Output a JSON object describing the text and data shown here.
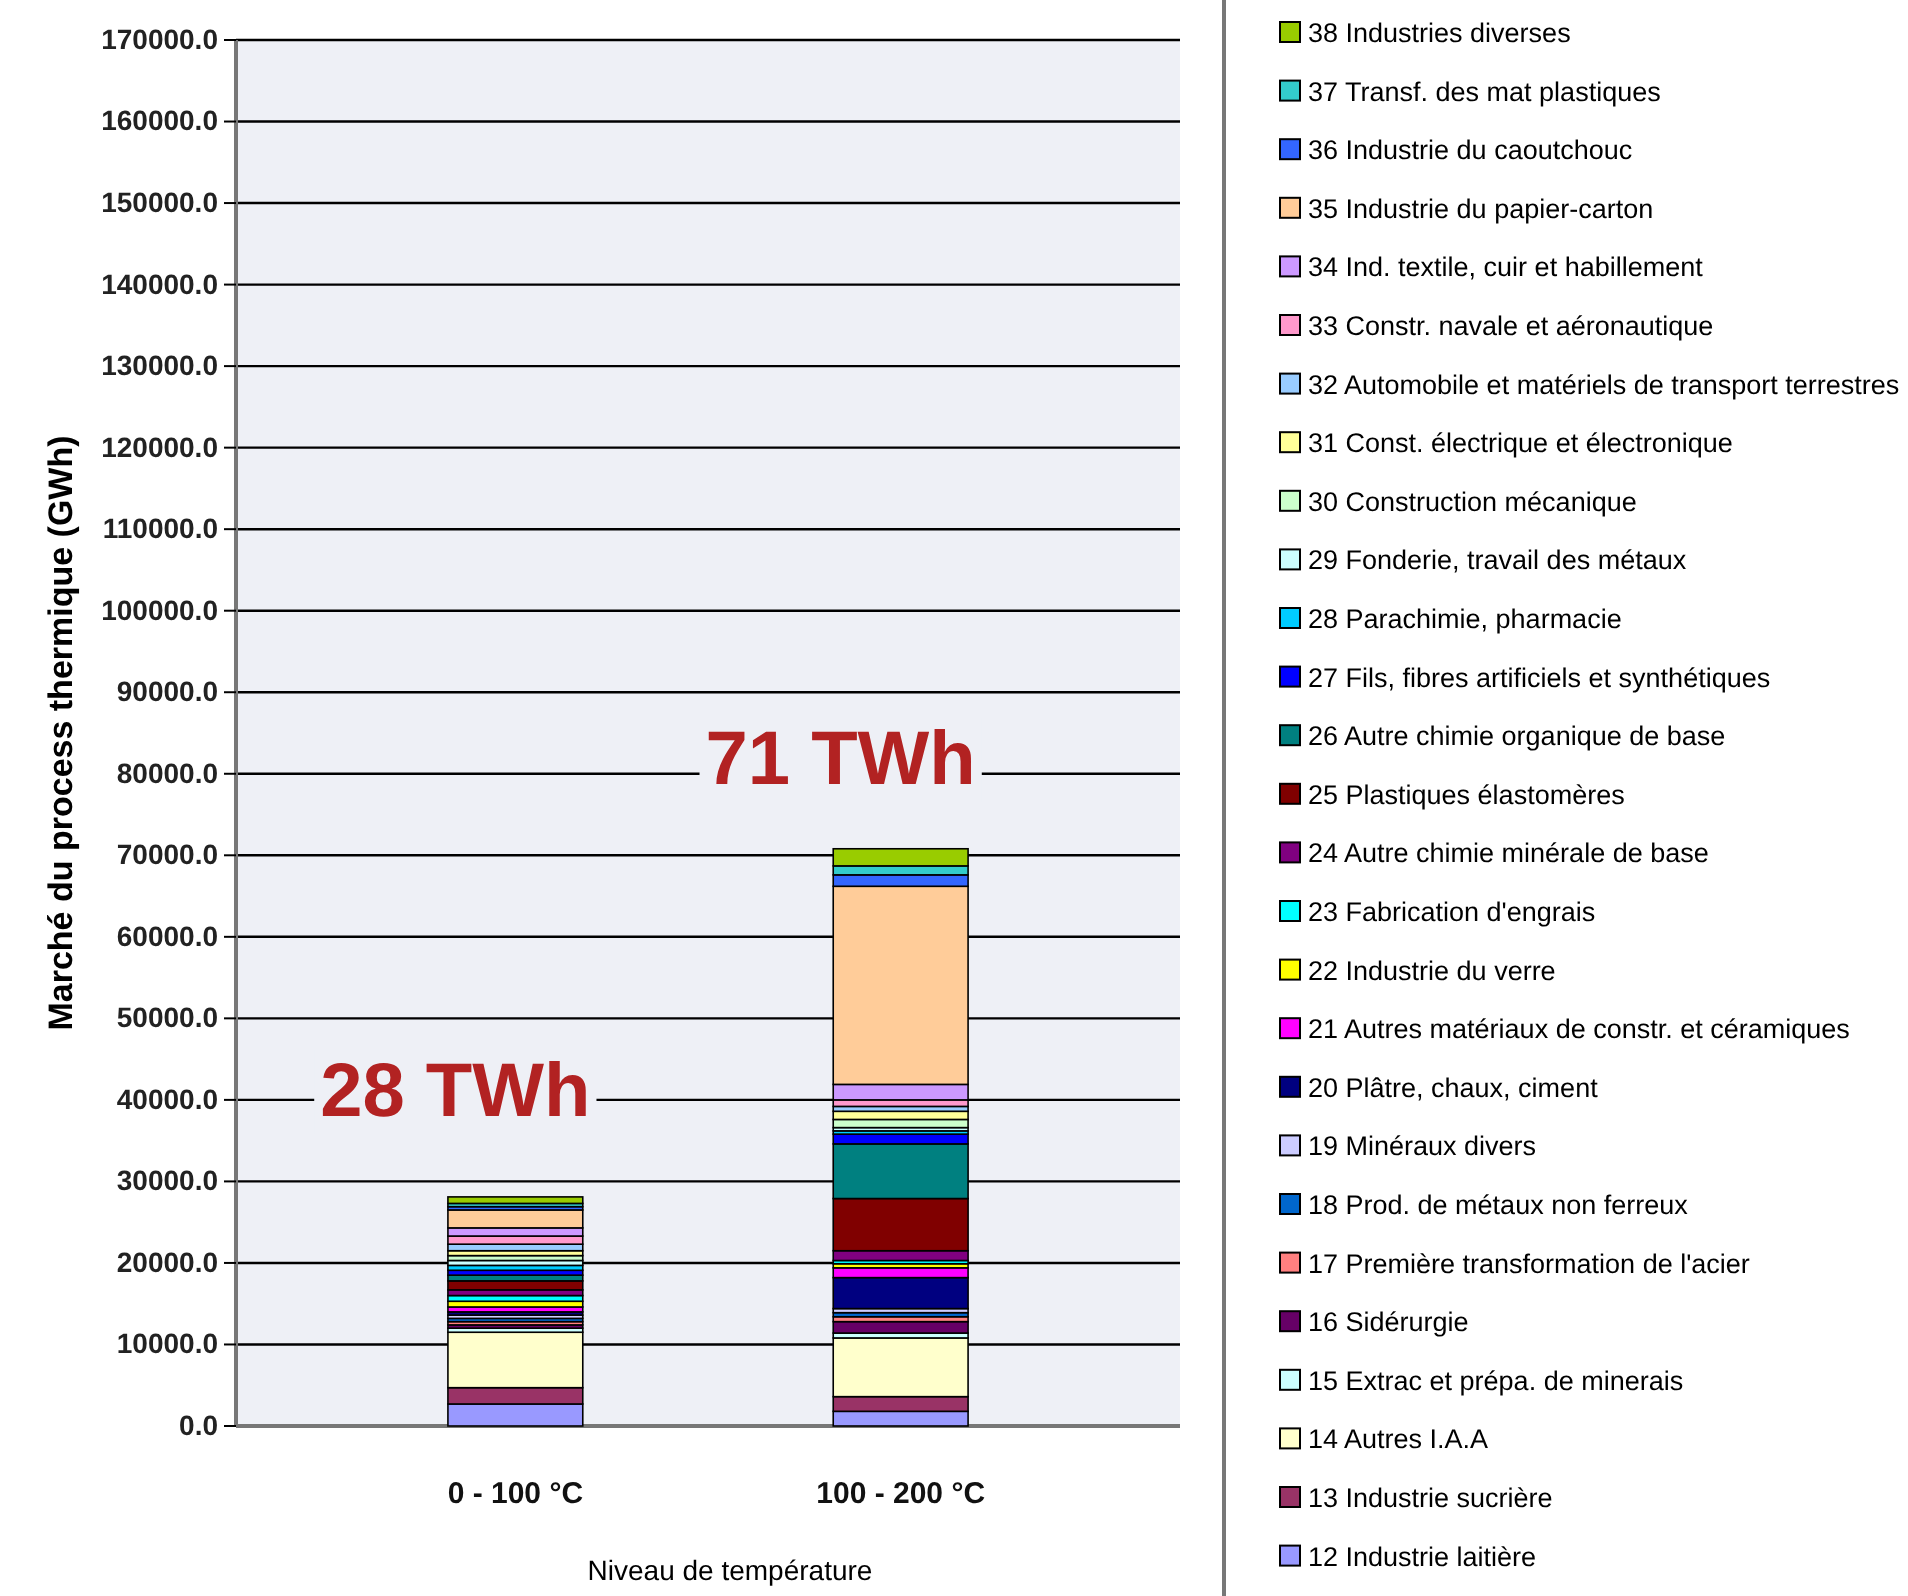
{
  "chart_data": {
    "type": "bar",
    "stacked": true,
    "ylabel": "Marché du process thermique (GWh)",
    "xlabel": "Niveau de température",
    "categories": [
      "0 - 100 °C",
      "100 - 200 °C"
    ],
    "ylim": [
      0,
      170000
    ],
    "yticks": [
      {
        "value": 0,
        "label": "0.0"
      },
      {
        "value": 10000,
        "label": "10000.0"
      },
      {
        "value": 20000,
        "label": "20000.0"
      },
      {
        "value": 30000,
        "label": "30000.0"
      },
      {
        "value": 40000,
        "label": "40000.0"
      },
      {
        "value": 50000,
        "label": "50000.0"
      },
      {
        "value": 60000,
        "label": "60000.0"
      },
      {
        "value": 70000,
        "label": "70000.0"
      },
      {
        "value": 80000,
        "label": "80000.0"
      },
      {
        "value": 90000,
        "label": "90000.0"
      },
      {
        "value": 100000,
        "label": "100000.0"
      },
      {
        "value": 110000,
        "label": "110000.0"
      },
      {
        "value": 120000,
        "label": "120000.0"
      },
      {
        "value": 130000,
        "label": "130000.0"
      },
      {
        "value": 140000,
        "label": "140000.0"
      },
      {
        "value": 150000,
        "label": "150000.0"
      },
      {
        "value": 160000,
        "label": "160000.0"
      },
      {
        "value": 170000,
        "label": "170000.0"
      }
    ],
    "grid": "y",
    "legend": "right",
    "annotations": [
      "28 TWh",
      "71 TWh"
    ],
    "series": [
      {
        "name": "12 Industrie laitière",
        "color": "#9999ff",
        "values": [
          2700,
          1800
        ]
      },
      {
        "name": "13 Industrie sucrière",
        "color": "#993366",
        "values": [
          2000,
          1800
        ]
      },
      {
        "name": "14 Autres I.A.A",
        "color": "#ffffcc",
        "values": [
          6800,
          7200
        ]
      },
      {
        "name": "15 Extrac et prépa. de minerais",
        "color": "#ccffff",
        "values": [
          500,
          600
        ]
      },
      {
        "name": "16 Sidérurgie",
        "color": "#660066",
        "values": [
          400,
          1400
        ]
      },
      {
        "name": "17 Première transformation de l'acier",
        "color": "#ff8080",
        "values": [
          400,
          600
        ]
      },
      {
        "name": "18 Prod. de métaux non ferreux",
        "color": "#0066cc",
        "values": [
          400,
          500
        ]
      },
      {
        "name": "19 Minéraux divers",
        "color": "#ccccff",
        "values": [
          400,
          500
        ]
      },
      {
        "name": "20 Plâtre, chaux, ciment",
        "color": "#000080",
        "values": [
          400,
          3800
        ]
      },
      {
        "name": "21 Autres matériaux de constr. et céramiques",
        "color": "#ff00ff",
        "values": [
          600,
          1200
        ]
      },
      {
        "name": "22 Industrie du verre",
        "color": "#ffff00",
        "values": [
          700,
          500
        ]
      },
      {
        "name": "23 Fabrication d'engrais",
        "color": "#00ffff",
        "values": [
          700,
          400
        ]
      },
      {
        "name": "24 Autre chimie minérale de base",
        "color": "#800080",
        "values": [
          700,
          1200
        ]
      },
      {
        "name": "25 Plastiques élastomères",
        "color": "#800000",
        "values": [
          1100,
          6400
        ]
      },
      {
        "name": "26 Autre chimie organique de base",
        "color": "#008080",
        "values": [
          700,
          6700
        ]
      },
      {
        "name": "27 Fils, fibres artificiels et synthétiques",
        "color": "#0000ff",
        "values": [
          600,
          1200
        ]
      },
      {
        "name": "28 Parachimie, pharmacie",
        "color": "#00ccff",
        "values": [
          600,
          400
        ]
      },
      {
        "name": "29 Fonderie, travail des métaux",
        "color": "#ccffff",
        "values": [
          600,
          400
        ]
      },
      {
        "name": "30 Construction mécanique",
        "color": "#ccffcc",
        "values": [
          600,
          1000
        ]
      },
      {
        "name": "31 Const. électrique et électronique",
        "color": "#ffff99",
        "values": [
          600,
          1000
        ]
      },
      {
        "name": "32 Automobile et matériels de transport terrestres",
        "color": "#99ccff",
        "values": [
          800,
          600
        ]
      },
      {
        "name": "33 Constr. navale et aéronautique",
        "color": "#ff99cc",
        "values": [
          1000,
          800
        ]
      },
      {
        "name": "34 Ind. textile, cuir et habillement",
        "color": "#cc99ff",
        "values": [
          1000,
          1900
        ]
      },
      {
        "name": "35 Industrie du papier-carton",
        "color": "#ffcc99",
        "values": [
          2200,
          24300
        ]
      },
      {
        "name": "36 Industrie du caoutchouc",
        "color": "#3366ff",
        "values": [
          400,
          1400
        ]
      },
      {
        "name": "37 Transf. des mat plastiques",
        "color": "#33cccc",
        "values": [
          400,
          1100
        ]
      },
      {
        "name": "38 Industries diverses",
        "color": "#99cc00",
        "values": [
          800,
          2100
        ]
      }
    ]
  }
}
